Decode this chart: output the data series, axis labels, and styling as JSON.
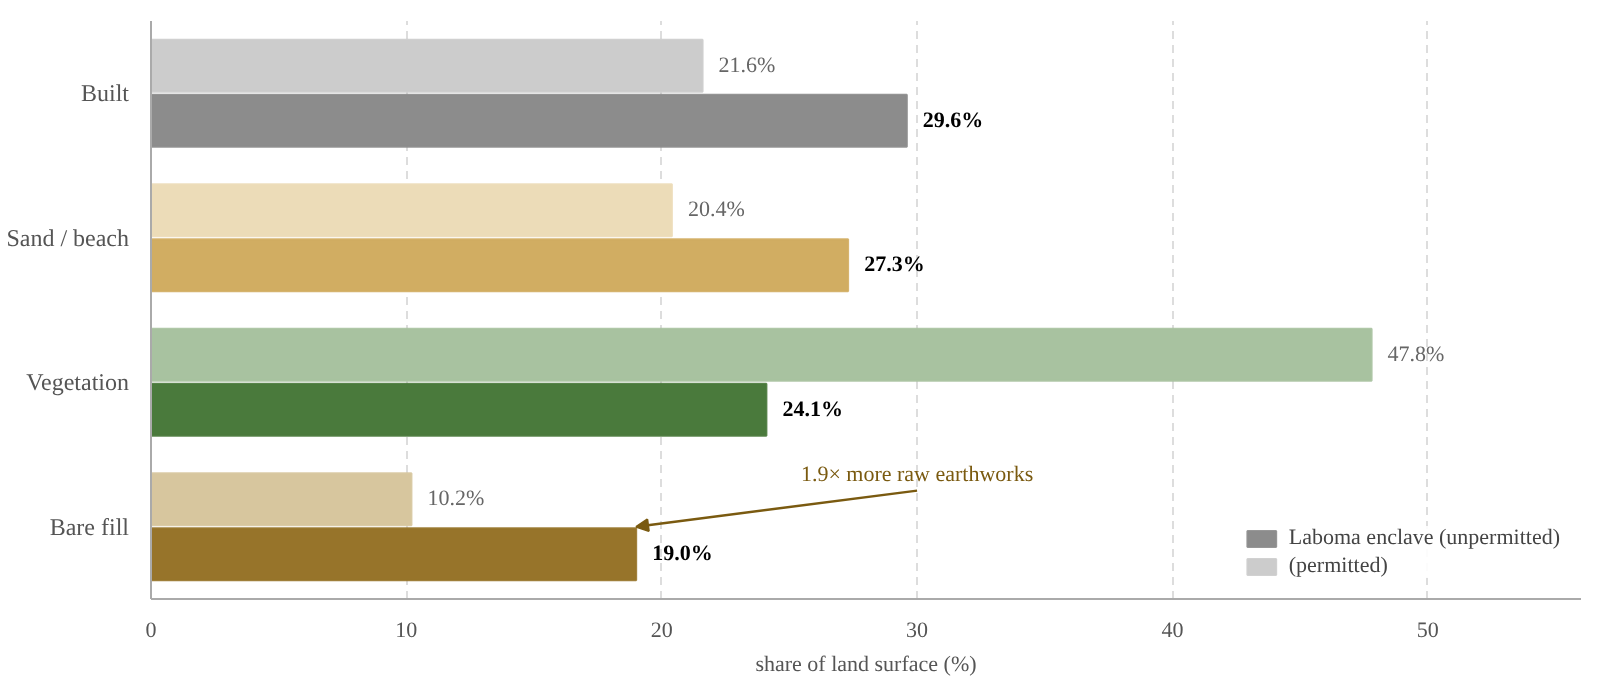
{
  "chart_data": {
    "type": "bar",
    "orientation": "horizontal",
    "xlabel": "share of land surface (%)",
    "categories": [
      "Built",
      "Sand / beach",
      "Vegetation",
      "Bare fill"
    ],
    "series": [
      {
        "name": "Laboma enclave (unpermitted)",
        "colors": [
          "#8c8c8c",
          "#d1ad62",
          "#4a7a3c",
          "#97742a"
        ],
        "values": [
          29.6,
          27.3,
          24.1,
          19.0
        ],
        "value_labels": [
          "29.6%",
          "27.3%",
          "24.1%",
          "19.0%"
        ]
      },
      {
        "name": "(permitted)",
        "colors": [
          "#cccccc",
          "#ecdcb8",
          "#a8c2a0",
          "#d7c69e"
        ],
        "values": [
          21.6,
          20.4,
          47.8,
          10.2
        ],
        "value_labels": [
          "21.6%",
          "20.4%",
          "47.8%",
          "10.2%"
        ]
      }
    ],
    "xlim": [
      0,
      56
    ],
    "xticks": [
      0,
      10,
      20,
      30,
      40,
      50
    ],
    "grid": "x",
    "legend": "bottom right",
    "annotations": [
      {
        "text": "1.9× more raw earthworks",
        "x": 19.0,
        "y": "Bare fill"
      }
    ]
  }
}
